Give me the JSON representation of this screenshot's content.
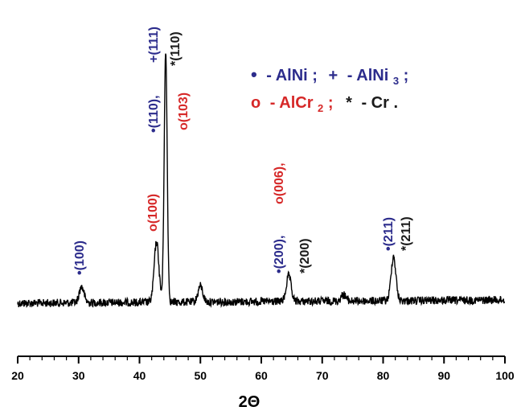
{
  "chart_data": {
    "type": "line",
    "xlabel": "2Θ",
    "ylabel": "",
    "xlim": [
      20,
      100
    ],
    "xticks": [
      "20",
      "30",
      "40",
      "50",
      "60",
      "70",
      "80",
      "90",
      "100"
    ],
    "y_axis_shown": false,
    "grid": false,
    "legend_placement": "top-right",
    "colors": {
      "trace": "#000000",
      "AlNi": "#2c2c8c",
      "AlNi3": "#2c2c8c",
      "AlCr2": "#d62828",
      "Cr": "#1a1a1a"
    },
    "series": [
      {
        "peaks": [
          {
            "x": 30.5,
            "h": 20
          },
          {
            "x": 42.8,
            "h": 75
          },
          {
            "x": 44.3,
            "h": 310
          },
          {
            "x": 50.0,
            "h": 20
          },
          {
            "x": 64.5,
            "h": 32
          },
          {
            "x": 73.5,
            "h": 8
          },
          {
            "x": 81.7,
            "h": 55
          }
        ]
      }
    ],
    "legend": {
      "line1": {
        "s1": "•",
        "t1": "- AlNi ;",
        "s2": "+",
        "t2": "- AlNi",
        "sub2": "3",
        "t2b": " ;"
      },
      "line2": {
        "s1": "o",
        "t1": "- AlCr",
        "sub1": "2",
        "t1b": " ;",
        "s2": "*",
        "t2": "- Cr ."
      }
    },
    "annotations": [
      {
        "text": "•(100)",
        "x": 30.5,
        "phase": "AlNi",
        "color": "#2c2c8c"
      },
      {
        "text": "o(100)",
        "x": 42.6,
        "phase": "AlCr2",
        "color": "#d62828"
      },
      {
        "text": "•(110),",
        "x": 43.0,
        "phase": "AlNi",
        "color": "#2c2c8c"
      },
      {
        "text": "+(111)",
        "x": 43.6,
        "phase": "AlNi3",
        "color": "#2c2c8c"
      },
      {
        "text": "*(110)",
        "x": 45.3,
        "phase": "Cr",
        "color": "#1a1a1a"
      },
      {
        "text": "o(103)",
        "x": 46.5,
        "phase": "AlCr2",
        "color": "#d62828"
      },
      {
        "text": "•(200),",
        "x": 63.4,
        "phase": "AlNi",
        "color": "#2c2c8c"
      },
      {
        "text": "o(006),",
        "x": 65.0,
        "phase": "AlCr2",
        "color": "#d62828"
      },
      {
        "text": "*(200)",
        "x": 66.6,
        "phase": "Cr",
        "color": "#1a1a1a"
      },
      {
        "text": "•(211)",
        "x": 81.0,
        "phase": "AlNi",
        "color": "#2c2c8c"
      },
      {
        "text": "*(211)",
        "x": 82.6,
        "phase": "Cr",
        "color": "#1a1a1a"
      }
    ]
  }
}
